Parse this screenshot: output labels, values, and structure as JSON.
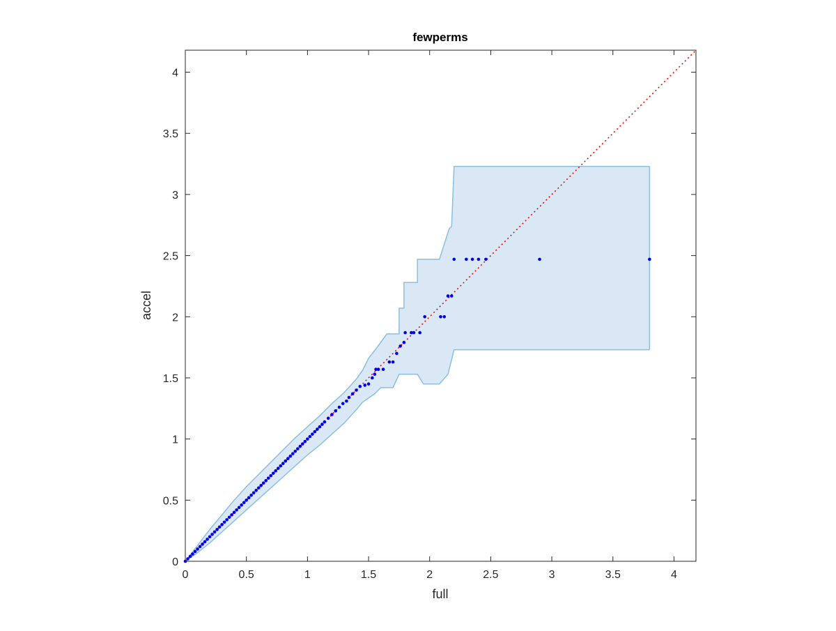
{
  "chart_data": {
    "type": "scatter",
    "title": "fewperms",
    "xlabel": "full",
    "ylabel": "accel",
    "xlim": [
      0,
      4.18
    ],
    "ylim": [
      0,
      4.18
    ],
    "xticks": [
      0,
      0.5,
      1,
      1.5,
      2,
      2.5,
      3,
      3.5,
      4
    ],
    "yticks": [
      0,
      0.5,
      1,
      1.5,
      2,
      2.5,
      3,
      3.5,
      4
    ],
    "xtick_labels": [
      "0",
      "0.5",
      "1",
      "1.5",
      "2",
      "2.5",
      "3",
      "3.5",
      "4"
    ],
    "ytick_labels": [
      "0",
      "0.5",
      "1",
      "1.5",
      "2",
      "2.5",
      "3",
      "3.5",
      "4"
    ],
    "grid": false,
    "colors": {
      "points": "#0000ee",
      "reference_line": "#ff0000",
      "band_fill": "#d9e8f4",
      "band_edge": "#8bbfdd",
      "axes": "#262626"
    },
    "reference_line": {
      "style": "dotted",
      "points": [
        [
          0,
          0
        ],
        [
          4.18,
          4.18
        ]
      ]
    },
    "band": {
      "upper": [
        [
          0,
          0
        ],
        [
          0.1,
          0.13
        ],
        [
          0.2,
          0.26
        ],
        [
          0.3,
          0.38
        ],
        [
          0.4,
          0.5
        ],
        [
          0.5,
          0.61
        ],
        [
          0.6,
          0.71
        ],
        [
          0.7,
          0.81
        ],
        [
          0.8,
          0.91
        ],
        [
          0.9,
          1.01
        ],
        [
          1.0,
          1.1
        ],
        [
          1.1,
          1.19
        ],
        [
          1.2,
          1.29
        ],
        [
          1.3,
          1.38
        ],
        [
          1.4,
          1.49
        ],
        [
          1.45,
          1.56
        ],
        [
          1.5,
          1.66
        ],
        [
          1.57,
          1.75
        ],
        [
          1.65,
          1.86
        ],
        [
          1.75,
          1.86
        ],
        [
          1.75,
          2.07
        ],
        [
          1.79,
          2.07
        ],
        [
          1.79,
          2.28
        ],
        [
          1.9,
          2.28
        ],
        [
          1.9,
          2.47
        ],
        [
          2.08,
          2.47
        ],
        [
          2.16,
          2.72
        ],
        [
          2.18,
          2.74
        ],
        [
          2.2,
          3.23
        ],
        [
          3.8,
          3.23
        ]
      ],
      "lower": [
        [
          0,
          0
        ],
        [
          0.1,
          0.07
        ],
        [
          0.2,
          0.15
        ],
        [
          0.3,
          0.24
        ],
        [
          0.4,
          0.33
        ],
        [
          0.5,
          0.42
        ],
        [
          0.6,
          0.51
        ],
        [
          0.7,
          0.6
        ],
        [
          0.8,
          0.69
        ],
        [
          0.9,
          0.78
        ],
        [
          1.0,
          0.87
        ],
        [
          1.1,
          0.95
        ],
        [
          1.2,
          1.04
        ],
        [
          1.3,
          1.13
        ],
        [
          1.4,
          1.24
        ],
        [
          1.45,
          1.3
        ],
        [
          1.55,
          1.37
        ],
        [
          1.6,
          1.42
        ],
        [
          1.7,
          1.42
        ],
        [
          1.75,
          1.53
        ],
        [
          1.9,
          1.53
        ],
        [
          1.95,
          1.45
        ],
        [
          2.08,
          1.45
        ],
        [
          2.15,
          1.53
        ],
        [
          2.2,
          1.73
        ],
        [
          3.8,
          1.73
        ]
      ]
    },
    "points": [
      [
        0.0,
        0.0
      ],
      [
        0.02,
        0.02
      ],
      [
        0.04,
        0.04
      ],
      [
        0.06,
        0.06
      ],
      [
        0.08,
        0.08
      ],
      [
        0.1,
        0.1
      ],
      [
        0.12,
        0.12
      ],
      [
        0.14,
        0.14
      ],
      [
        0.16,
        0.16
      ],
      [
        0.18,
        0.18
      ],
      [
        0.2,
        0.2
      ],
      [
        0.22,
        0.22
      ],
      [
        0.24,
        0.24
      ],
      [
        0.26,
        0.26
      ],
      [
        0.28,
        0.28
      ],
      [
        0.3,
        0.3
      ],
      [
        0.32,
        0.32
      ],
      [
        0.34,
        0.34
      ],
      [
        0.36,
        0.36
      ],
      [
        0.38,
        0.38
      ],
      [
        0.4,
        0.4
      ],
      [
        0.42,
        0.42
      ],
      [
        0.44,
        0.44
      ],
      [
        0.46,
        0.46
      ],
      [
        0.48,
        0.48
      ],
      [
        0.5,
        0.5
      ],
      [
        0.52,
        0.52
      ],
      [
        0.54,
        0.54
      ],
      [
        0.56,
        0.56
      ],
      [
        0.58,
        0.58
      ],
      [
        0.6,
        0.6
      ],
      [
        0.62,
        0.62
      ],
      [
        0.64,
        0.64
      ],
      [
        0.66,
        0.66
      ],
      [
        0.68,
        0.68
      ],
      [
        0.7,
        0.7
      ],
      [
        0.72,
        0.72
      ],
      [
        0.74,
        0.74
      ],
      [
        0.76,
        0.76
      ],
      [
        0.78,
        0.78
      ],
      [
        0.8,
        0.8
      ],
      [
        0.82,
        0.82
      ],
      [
        0.84,
        0.84
      ],
      [
        0.86,
        0.86
      ],
      [
        0.88,
        0.88
      ],
      [
        0.9,
        0.9
      ],
      [
        0.92,
        0.92
      ],
      [
        0.94,
        0.94
      ],
      [
        0.96,
        0.96
      ],
      [
        0.98,
        0.98
      ],
      [
        1.0,
        1.0
      ],
      [
        1.02,
        1.02
      ],
      [
        1.04,
        1.04
      ],
      [
        1.06,
        1.06
      ],
      [
        1.08,
        1.08
      ],
      [
        1.1,
        1.1
      ],
      [
        1.12,
        1.12
      ],
      [
        1.14,
        1.14
      ],
      [
        1.17,
        1.17
      ],
      [
        1.2,
        1.2
      ],
      [
        1.23,
        1.23
      ],
      [
        1.26,
        1.26
      ],
      [
        1.29,
        1.29
      ],
      [
        1.32,
        1.31
      ],
      [
        1.34,
        1.34
      ],
      [
        1.37,
        1.37
      ],
      [
        1.4,
        1.4
      ],
      [
        1.43,
        1.43
      ],
      [
        1.47,
        1.44
      ],
      [
        1.5,
        1.45
      ],
      [
        1.53,
        1.5
      ],
      [
        1.55,
        1.53
      ],
      [
        1.56,
        1.57
      ],
      [
        1.58,
        1.57
      ],
      [
        1.62,
        1.57
      ],
      [
        1.67,
        1.63
      ],
      [
        1.7,
        1.63
      ],
      [
        1.73,
        1.7
      ],
      [
        1.76,
        1.76
      ],
      [
        1.79,
        1.79
      ],
      [
        1.8,
        1.87
      ],
      [
        1.85,
        1.87
      ],
      [
        1.87,
        1.87
      ],
      [
        1.92,
        1.87
      ],
      [
        1.96,
        2.0
      ],
      [
        2.09,
        2.0
      ],
      [
        2.12,
        2.0
      ],
      [
        2.15,
        2.17
      ],
      [
        2.18,
        2.17
      ],
      [
        2.2,
        2.47
      ],
      [
        2.3,
        2.47
      ],
      [
        2.35,
        2.47
      ],
      [
        2.4,
        2.47
      ],
      [
        2.46,
        2.47
      ],
      [
        2.9,
        2.47
      ],
      [
        3.8,
        2.47
      ]
    ]
  }
}
